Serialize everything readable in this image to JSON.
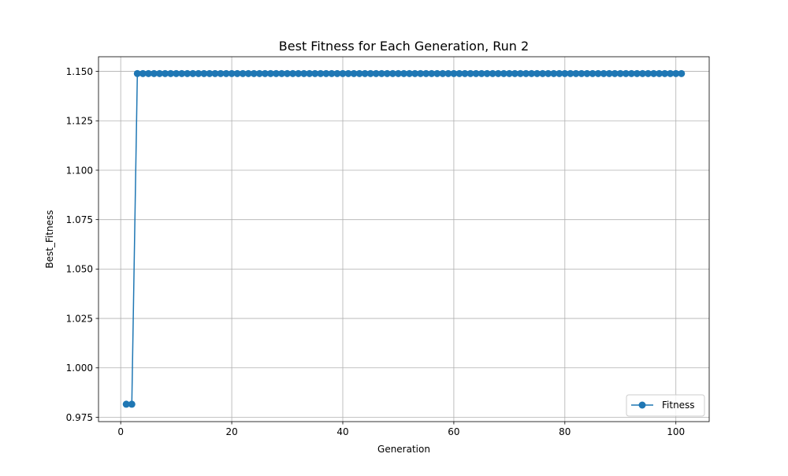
{
  "chart_data": {
    "type": "line",
    "title": "Best Fitness for Each Generation, Run 2",
    "xlabel": "Generation",
    "ylabel": "Best_Fitness",
    "xlim": [
      -3.9999,
      106.0
    ],
    "ylim": [
      0.9728,
      1.1574
    ],
    "xticks": [
      0,
      20,
      40,
      60,
      80,
      100
    ],
    "xtick_labels": [
      "0",
      "20",
      "40",
      "60",
      "80",
      "100"
    ],
    "yticks": [
      0.975,
      1.0,
      1.025,
      1.05,
      1.075,
      1.1,
      1.125,
      1.15
    ],
    "ytick_labels": [
      "0.975",
      "1.000",
      "1.025",
      "1.050",
      "1.075",
      "1.100",
      "1.125",
      "1.150"
    ],
    "grid": true,
    "legend_position": "bottom-right",
    "series": [
      {
        "name": "Fitness",
        "color": "#1f77b4",
        "marker": "circle",
        "x": [
          1,
          2,
          3,
          4,
          5,
          6,
          7,
          8,
          9,
          10,
          11,
          12,
          13,
          14,
          15,
          16,
          17,
          18,
          19,
          20,
          21,
          22,
          23,
          24,
          25,
          26,
          27,
          28,
          29,
          30,
          31,
          32,
          33,
          34,
          35,
          36,
          37,
          38,
          39,
          40,
          41,
          42,
          43,
          44,
          45,
          46,
          47,
          48,
          49,
          50,
          51,
          52,
          53,
          54,
          55,
          56,
          57,
          58,
          59,
          60,
          61,
          62,
          63,
          64,
          65,
          66,
          67,
          68,
          69,
          70,
          71,
          72,
          73,
          74,
          75,
          76,
          77,
          78,
          79,
          80,
          81,
          82,
          83,
          84,
          85,
          86,
          87,
          88,
          89,
          90,
          91,
          92,
          93,
          94,
          95,
          96,
          97,
          98,
          99,
          100,
          101
        ],
        "y": [
          0.9816,
          0.9816,
          1.1489,
          1.1489,
          1.1489,
          1.1489,
          1.1489,
          1.1489,
          1.1489,
          1.1489,
          1.1489,
          1.1489,
          1.1489,
          1.1489,
          1.1489,
          1.1489,
          1.1489,
          1.1489,
          1.1489,
          1.1489,
          1.1489,
          1.1489,
          1.1489,
          1.1489,
          1.1489,
          1.1489,
          1.1489,
          1.1489,
          1.1489,
          1.1489,
          1.1489,
          1.1489,
          1.1489,
          1.1489,
          1.1489,
          1.1489,
          1.1489,
          1.1489,
          1.1489,
          1.1489,
          1.1489,
          1.1489,
          1.1489,
          1.1489,
          1.1489,
          1.1489,
          1.1489,
          1.1489,
          1.1489,
          1.1489,
          1.1489,
          1.1489,
          1.1489,
          1.1489,
          1.1489,
          1.1489,
          1.1489,
          1.1489,
          1.1489,
          1.1489,
          1.1489,
          1.1489,
          1.1489,
          1.1489,
          1.1489,
          1.1489,
          1.1489,
          1.1489,
          1.1489,
          1.1489,
          1.1489,
          1.1489,
          1.1489,
          1.1489,
          1.1489,
          1.1489,
          1.1489,
          1.1489,
          1.1489,
          1.1489,
          1.1489,
          1.1489,
          1.1489,
          1.1489,
          1.1489,
          1.1489,
          1.1489,
          1.1489,
          1.1489,
          1.1489,
          1.1489,
          1.1489,
          1.1489,
          1.1489,
          1.1489,
          1.1489,
          1.1489,
          1.1489,
          1.1489,
          1.1489,
          1.1489
        ]
      }
    ]
  }
}
